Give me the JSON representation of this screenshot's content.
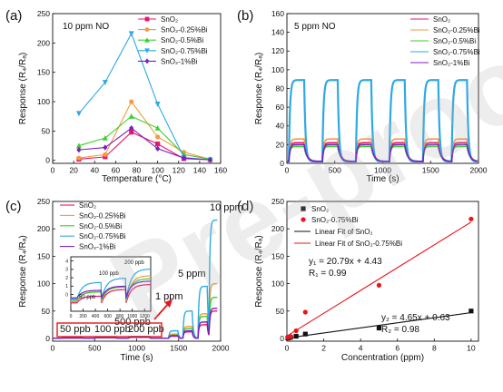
{
  "watermark": "Pre-proof",
  "chart_data": [
    {
      "type": "line",
      "panel_label": "(a)",
      "annotation": "10 ppm NO",
      "xlabel": "Temperature (°C)",
      "ylabel": "Response (R₄/Rₐ)",
      "xlim": [
        0,
        160
      ],
      "ylim": [
        -5,
        250
      ],
      "xticks": [
        0,
        20,
        40,
        60,
        80,
        100,
        120,
        140,
        160
      ],
      "yticks": [
        0,
        50,
        100,
        150,
        200,
        250
      ],
      "x": [
        25,
        50,
        75,
        100,
        125,
        150
      ],
      "legend_position": "top-right",
      "series": [
        {
          "name": "SnO₂",
          "color": "#e8156b",
          "marker": "square",
          "values": [
            2,
            6,
            48,
            28,
            3,
            1
          ]
        },
        {
          "name": "SnO₂-0.25%Bi",
          "color": "#f39b3f",
          "marker": "circle",
          "values": [
            4,
            10,
            100,
            40,
            14,
            2
          ]
        },
        {
          "name": "SnO₂-0.5%Bi",
          "color": "#3bcf2c",
          "marker": "triangle",
          "values": [
            25,
            38,
            75,
            55,
            10,
            2
          ]
        },
        {
          "name": "SnO₂-0.75%Bi",
          "color": "#2ea9e3",
          "marker": "triangle-down",
          "values": [
            80,
            133,
            216,
            96,
            5,
            1
          ]
        },
        {
          "name": "SnO₂-1%Bi",
          "color": "#7b1fc4",
          "marker": "diamond",
          "values": [
            18,
            22,
            55,
            20,
            4,
            1
          ]
        }
      ]
    },
    {
      "type": "line",
      "panel_label": "(b)",
      "annotation": "5 ppm NO",
      "xlabel": "Time (s)",
      "ylabel": "Response (R₄/Rₐ)",
      "xlim": [
        0,
        2000
      ],
      "ylim": [
        0,
        160
      ],
      "xticks": [
        0,
        500,
        1000,
        1500,
        2000
      ],
      "yticks": [
        0,
        20,
        40,
        60,
        80,
        100,
        120,
        140,
        160
      ],
      "legend_position": "top-right",
      "cycle_starts": [
        20,
        370,
        720,
        1070,
        1420,
        1720
      ],
      "series": [
        {
          "name": "SnO₂",
          "color": "#e8156b",
          "plateau": 22
        },
        {
          "name": "SnO₂-0.25%Bi",
          "color": "#f39b3f",
          "plateau": 26
        },
        {
          "name": "SnO₂-0.5%Bi",
          "color": "#3bcf2c",
          "plateau": 18
        },
        {
          "name": "SnO₂-0.75%Bi",
          "color": "#2ea9e3",
          "plateau": 89
        },
        {
          "name": "SnO₂-1%Bi",
          "color": "#7b1fc4",
          "plateau": 20
        }
      ]
    },
    {
      "type": "line",
      "panel_label": "(c)",
      "xlabel": "Time (s)",
      "ylabel": "Response (R₄/Rₐ)",
      "xlim": [
        0,
        2000
      ],
      "ylim": [
        -5,
        250
      ],
      "xticks": [
        0,
        500,
        1000,
        1500,
        2000
      ],
      "yticks": [
        0,
        50,
        100,
        150,
        200,
        250
      ],
      "legend_position": "top-left",
      "concentration_labels": [
        "50 ppb",
        "100 ppb",
        "200 ppb",
        "500 ppb",
        "1 ppm",
        "5 ppm",
        "10 ppm"
      ],
      "step_times": [
        100,
        500,
        900,
        1380,
        1550,
        1730,
        1860
      ],
      "series": [
        {
          "name": "SnO₂",
          "color": "#e8156b",
          "levels": [
            0.8,
            1.6,
            2.2,
            4,
            12,
            25,
            50
          ]
        },
        {
          "name": "SnO₂-0.25%Bi",
          "color": "#f39b3f",
          "levels": [
            1.2,
            1.8,
            3.1,
            8,
            22,
            45,
            100
          ]
        },
        {
          "name": "SnO₂-0.5%Bi",
          "color": "#3bcf2c",
          "levels": [
            1,
            1.6,
            2.6,
            6,
            18,
            40,
            75
          ]
        },
        {
          "name": "SnO₂-0.75%Bi",
          "color": "#2ea9e3",
          "levels": [
            2,
            2.5,
            3.6,
            14,
            50,
            95,
            216
          ]
        },
        {
          "name": "SnO₂-1%Bi",
          "color": "#7b1fc4",
          "levels": [
            0.9,
            1.4,
            2.0,
            5,
            14,
            30,
            55
          ]
        }
      ],
      "inset": {
        "xlim": [
          0,
          1300
        ],
        "ylim": [
          -2,
          4.5
        ],
        "xticks": [
          0,
          200,
          400,
          600,
          800,
          1000,
          1200
        ],
        "yticks": [
          0,
          1,
          2,
          3,
          4
        ],
        "labels": [
          "50 ppb",
          "100 ppb",
          "200 ppb"
        ]
      }
    },
    {
      "type": "scatter",
      "panel_label": "(d)",
      "xlabel": "Concentration (ppm)",
      "ylabel": "Response (R₄/Rₐ)",
      "xlim": [
        0,
        10.4
      ],
      "ylim": [
        -5,
        250
      ],
      "xticks": [
        0,
        2,
        4,
        6,
        8,
        10
      ],
      "yticks": [
        0,
        50,
        100,
        150,
        200,
        250
      ],
      "legend_position": "top-left",
      "series": [
        {
          "name": "SnO₂",
          "color": "#111111",
          "marker": "square",
          "x": [
            0.05,
            0.1,
            0.2,
            0.5,
            1,
            5,
            10
          ],
          "values": [
            0.8,
            1.6,
            2.2,
            4,
            8,
            19,
            50
          ]
        },
        {
          "name": "SnO₂-0.75%Bi",
          "color": "#e8151b",
          "marker": "circle",
          "x": [
            0.05,
            0.1,
            0.2,
            0.5,
            1,
            5,
            10
          ],
          "values": [
            2,
            2.5,
            3.6,
            14,
            48,
            97,
            218
          ]
        }
      ],
      "fits": [
        {
          "name": "Linear Fit of SnO₂",
          "color": "#111111",
          "slope": 4.65,
          "intercept": 0.63
        },
        {
          "name": "Linear Fit of SnO₂-0.75%Bi",
          "color": "#e8151b",
          "slope": 20.79,
          "intercept": 4.43
        }
      ],
      "equations": [
        {
          "eq": "y₁ = 20.79x + 4.43",
          "r": "R₁ = 0.99"
        },
        {
          "eq": "y₂ = 4.65x + 0.63",
          "r": "R₂ = 0.98"
        }
      ]
    }
  ]
}
